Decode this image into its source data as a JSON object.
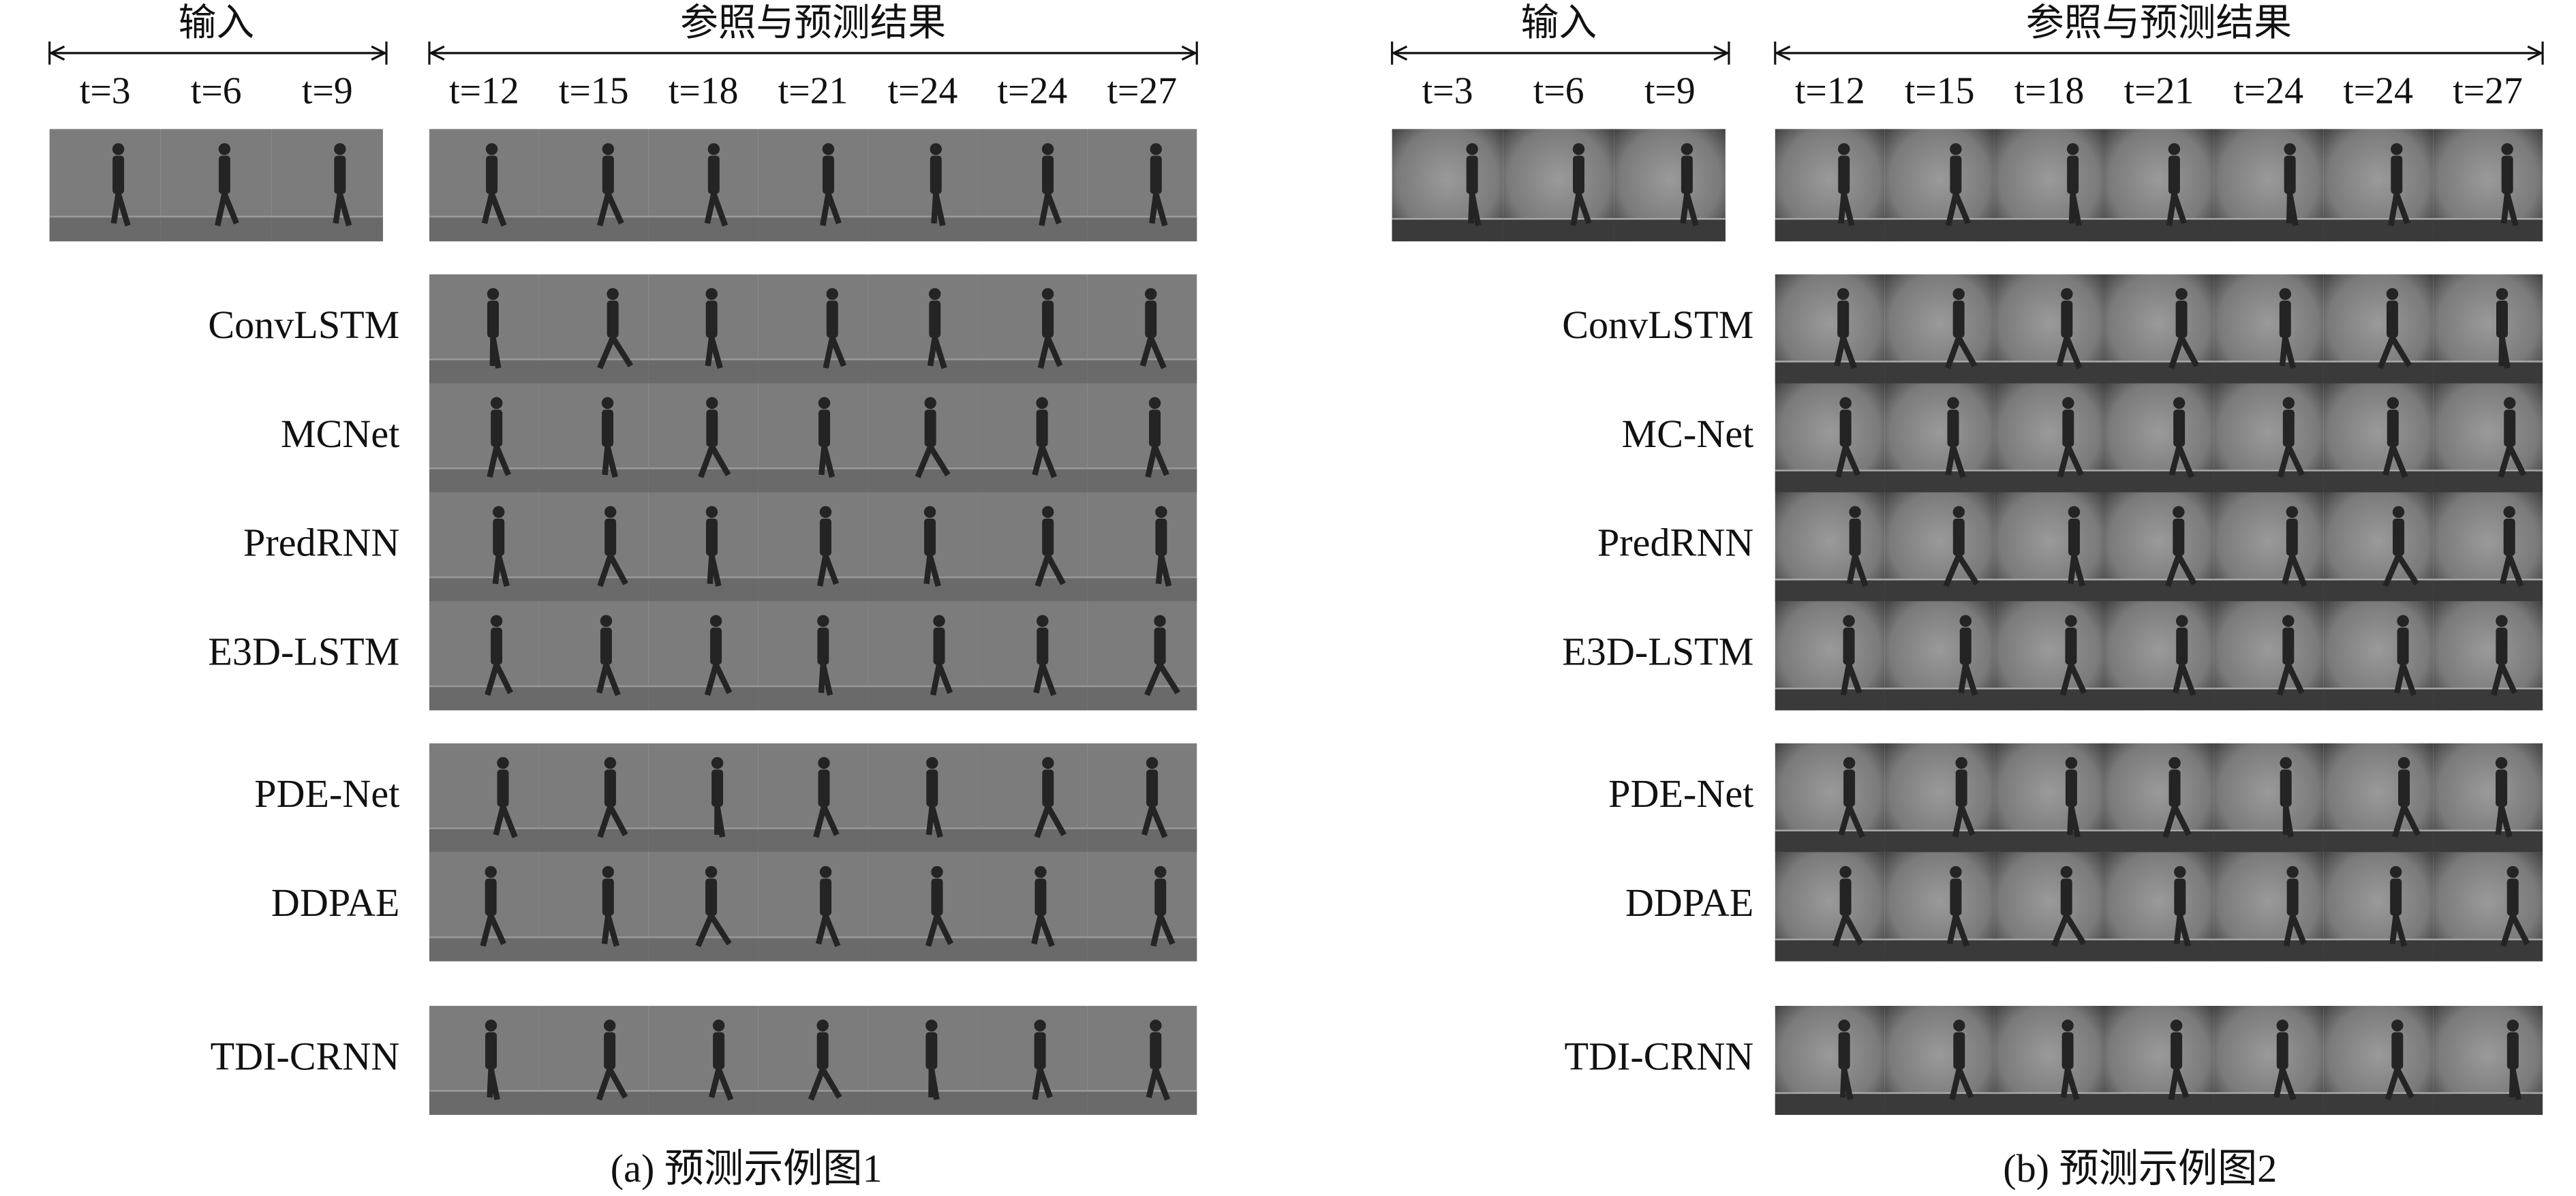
{
  "panels": [
    {
      "input_label": "输入",
      "reference_label": "参照与预测结果",
      "input_times": [
        "t=3",
        "t=6",
        "t=9"
      ],
      "reference_times": [
        "t=12",
        "t=15",
        "t=18",
        "t=21",
        "t=24",
        "t=24",
        "t=27"
      ],
      "method_groups": [
        [
          "ConvLSTM",
          "MCNet",
          "PredRNN",
          "E3D-LSTM"
        ],
        [
          "PDE-Net",
          "DDPAE"
        ],
        [
          "TDI-CRNN"
        ]
      ],
      "caption": "(a) 预测示例图1"
    },
    {
      "input_label": "输入",
      "reference_label": "参照与预测结果",
      "input_times": [
        "t=3",
        "t=6",
        "t=9"
      ],
      "reference_times": [
        "t=12",
        "t=15",
        "t=18",
        "t=21",
        "t=24",
        "t=24",
        "t=27"
      ],
      "method_groups": [
        [
          "ConvLSTM",
          "MC-Net",
          "PredRNN",
          "E3D-LSTM"
        ],
        [
          "PDE-Net",
          "DDPAE"
        ],
        [
          "TDI-CRNN"
        ]
      ],
      "caption": "(b) 预测示例图2"
    }
  ]
}
